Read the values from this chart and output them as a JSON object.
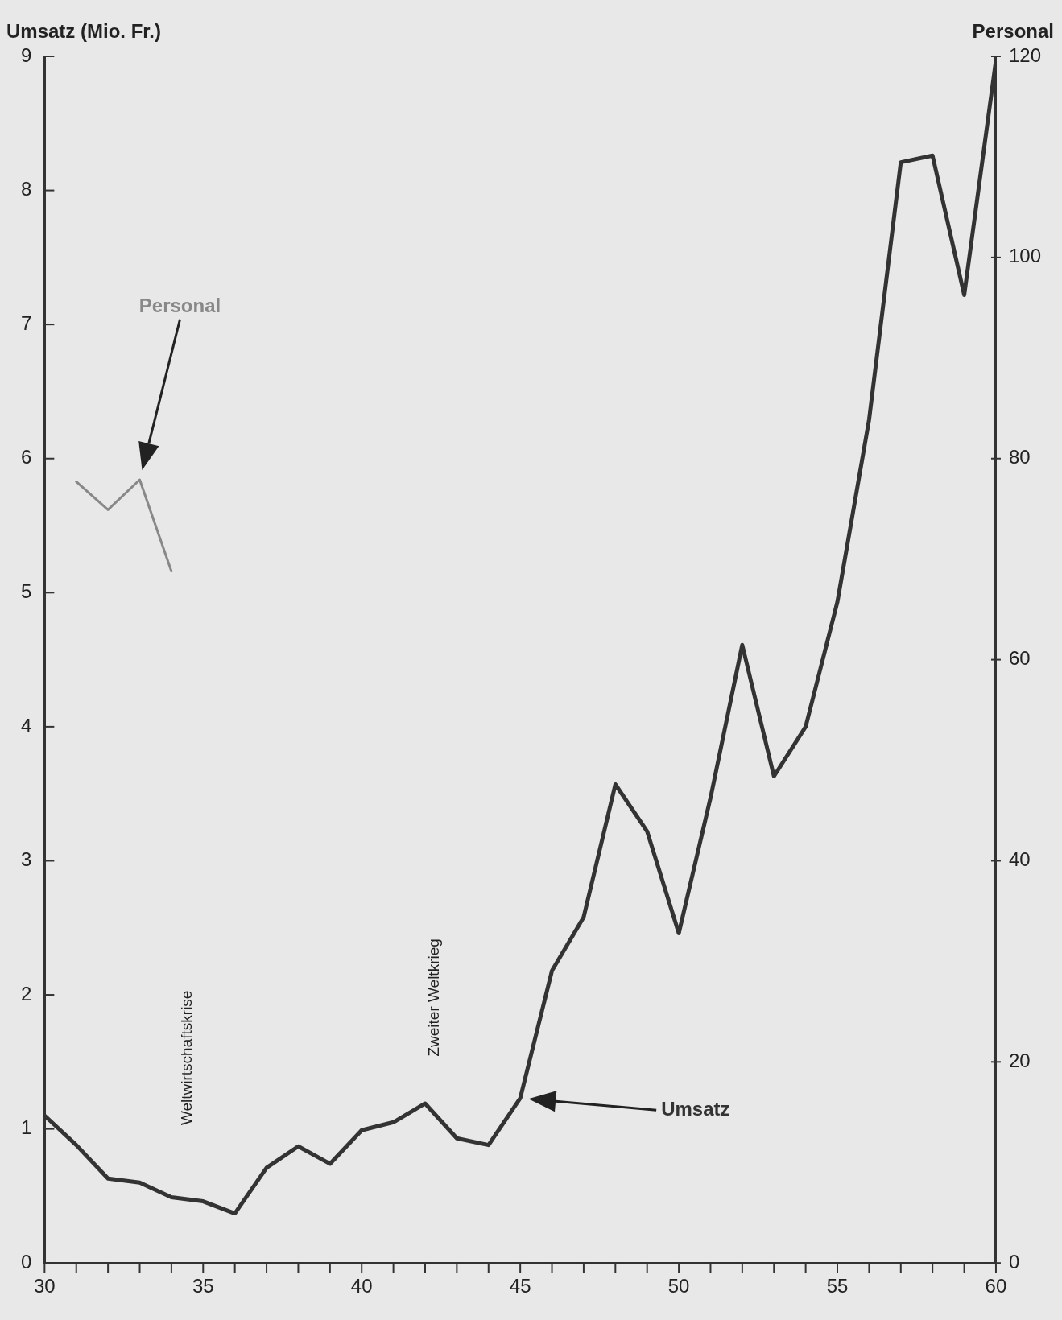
{
  "chart_data": {
    "type": "line",
    "ylabel": "Umsatz (Mio. Fr.)",
    "y2label": "Personal",
    "x": [
      30,
      31,
      32,
      33,
      34,
      35,
      36,
      37,
      38,
      39,
      40,
      41,
      42,
      43,
      44,
      45,
      46,
      47,
      48,
      49,
      50,
      51,
      52,
      53,
      54,
      55,
      56,
      57,
      58,
      59,
      60
    ],
    "series": [
      {
        "name": "Umsatz",
        "color": "#333333",
        "values": [
          1.1,
          0.88,
          0.63,
          0.6,
          0.49,
          0.46,
          0.37,
          0.71,
          0.87,
          0.74,
          0.99,
          1.05,
          1.19,
          0.93,
          0.88,
          1.23,
          2.18,
          2.58,
          3.57,
          3.22,
          2.46,
          3.47,
          4.61,
          3.63,
          4.0,
          4.93,
          6.29,
          8.21,
          8.26,
          7.22,
          8.97
        ]
      },
      {
        "name": "Personal",
        "color": "#888888",
        "axis": "y2",
        "x": [
          31,
          32,
          33,
          34
        ],
        "values": [
          77.7,
          74.9,
          77.9,
          68.8
        ]
      }
    ],
    "xlim": [
      30,
      60
    ],
    "xticks": [
      30,
      {
        "value": 31,
        "label": null
      },
      {
        "value": 32,
        "label": null
      },
      {
        "value": 33,
        "label": null
      },
      {
        "value": 34,
        "label": null
      },
      35,
      {
        "value": 36,
        "label": null
      },
      {
        "value": 37,
        "label": null
      },
      {
        "value": 38,
        "label": null
      },
      {
        "value": 39,
        "label": null
      },
      40,
      {
        "value": 41,
        "label": null
      },
      {
        "value": 42,
        "label": null
      },
      {
        "value": 43,
        "label": null
      },
      {
        "value": 44,
        "label": null
      },
      45,
      {
        "value": 46,
        "label": null
      },
      {
        "value": 47,
        "label": null
      },
      {
        "value": 48,
        "label": null
      },
      {
        "value": 49,
        "label": null
      },
      50,
      {
        "value": 51,
        "label": null
      },
      {
        "value": 52,
        "label": null
      },
      {
        "value": 53,
        "label": null
      },
      {
        "value": 54,
        "label": null
      },
      55,
      {
        "value": 56,
        "label": null
      },
      {
        "value": 57,
        "label": null
      },
      {
        "value": 58,
        "label": null
      },
      {
        "value": 59,
        "label": null
      },
      60
    ],
    "ylim": [
      0,
      9
    ],
    "yticks": [
      0,
      1,
      2,
      3,
      4,
      5,
      6,
      7,
      8,
      9
    ],
    "y2lim": [
      0,
      120
    ],
    "y2ticks": [
      0,
      20,
      40,
      60,
      80,
      100,
      120
    ],
    "annotations": [
      "Weltwirtschaftskrise",
      "Zweiter Weltkrieg"
    ],
    "grid": false,
    "legend": false,
    "marker": "none",
    "line_style": "solid"
  }
}
